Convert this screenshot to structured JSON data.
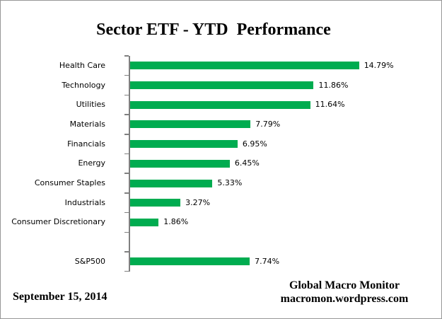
{
  "chart_data": {
    "type": "bar",
    "orientation": "horizontal",
    "title": "Sector ETF - YTD  Performance",
    "categories": [
      "Health Care",
      "Technology",
      "Utilities",
      "Materials",
      "Financials",
      "Energy",
      "Consumer Staples",
      "Industrials",
      "Consumer Discretionary",
      "",
      "S&P500"
    ],
    "values": [
      14.79,
      11.86,
      11.64,
      7.79,
      6.95,
      6.45,
      5.33,
      3.27,
      1.86,
      null,
      7.74
    ],
    "value_labels": [
      "14.79%",
      "11.86%",
      "11.64%",
      "7.79%",
      "6.95%",
      "6.45%",
      "5.33%",
      "3.27%",
      "1.86%",
      "",
      "7.74%"
    ],
    "xlabel": "",
    "ylabel": "",
    "xlim": [
      0,
      20
    ],
    "grid": false,
    "legend": false,
    "data_label_format": "0.00%",
    "bar_color": "#00AC50",
    "axis_color": "#808080"
  },
  "footer": {
    "date": "September 15, 2014",
    "brand_line1": "Global Macro Monitor",
    "brand_line2": "macromon.wordpress.com"
  }
}
